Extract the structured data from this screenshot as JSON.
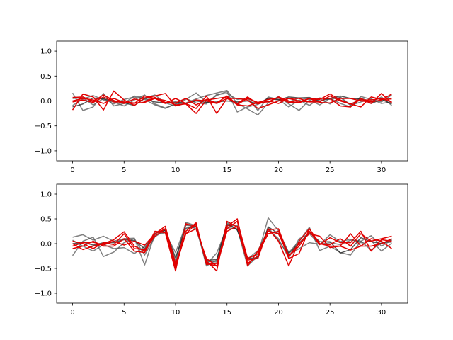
{
  "chart_data": [
    {
      "type": "line",
      "title": "",
      "xlabel": "",
      "ylabel": "",
      "xlim": [
        -1.55,
        32.55
      ],
      "ylim": [
        -1.2,
        1.2
      ],
      "xticks": [
        0,
        5,
        10,
        15,
        20,
        25,
        30
      ],
      "yticks": [
        -1.0,
        -0.5,
        0.0,
        0.5,
        1.0
      ],
      "ytick_labels": [
        "−1.0",
        "−0.5",
        "0.0",
        "0.5",
        "1.0"
      ],
      "grid": false,
      "series": [
        {
          "color": "#555555",
          "values": [
            0.16,
            -0.19,
            -0.12,
            0.15,
            -0.1,
            -0.05,
            0.1,
            0.06,
            0.12,
            -0.04,
            -0.1,
            0.03,
            0.16,
            -0.03,
            0.11,
            0.19,
            -0.22,
            -0.12,
            -0.07,
            0.06,
            0.03,
            -0.02,
            0.06,
            0.03,
            0.05,
            -0.06,
            0.08,
            -0.08,
            0.06,
            -0.02,
            0.08,
            -0.09
          ]
        },
        {
          "color": "#555555",
          "values": [
            -0.09,
            0.04,
            0.11,
            0.02,
            -0.02,
            -0.1,
            0.02,
            0.12,
            -0.06,
            -0.14,
            -0.06,
            -0.04,
            0.04,
            0.11,
            0.16,
            0.21,
            -0.05,
            -0.16,
            -0.28,
            -0.04,
            0.09,
            -0.06,
            -0.19,
            0.02,
            -0.08,
            0.05,
            -0.05,
            -0.12,
            0.09,
            0.03,
            -0.02,
            0.12
          ]
        },
        {
          "color": "#555555",
          "values": [
            0.05,
            0.06,
            -0.08,
            0.05,
            -0.06,
            0.03,
            0.08,
            0.03,
            -0.08,
            -0.15,
            -0.06,
            0.05,
            -0.04,
            -0.06,
            0.13,
            0.15,
            0.03,
            0.06,
            -0.19,
            0.08,
            0.03,
            -0.12,
            0.02,
            -0.09,
            0.06,
            0.03,
            0.07,
            -0.09,
            -0.02,
            0.04,
            -0.05,
            -0.02
          ]
        },
        {
          "color": "#222222",
          "values": [
            -0.12,
            -0.06,
            0.06,
            0.04,
            0.0,
            -0.04,
            -0.09,
            0.05,
            -0.02,
            -0.04,
            -0.02,
            -0.05,
            0.0,
            -0.03,
            -0.02,
            0.0,
            -0.02,
            0.0,
            -0.06,
            0.05,
            0.02,
            0.08,
            0.06,
            0.07,
            0.0,
            0.05,
            0.1,
            0.05,
            0.04,
            -0.05,
            0.03,
            -0.06
          ]
        },
        {
          "color": "#e00000",
          "values": [
            -0.18,
            0.14,
            0.08,
            -0.18,
            0.2,
            0.02,
            -0.09,
            0.06,
            0.1,
            0.15,
            -0.1,
            -0.05,
            0.02,
            0.0,
            -0.05,
            0.05,
            -0.05,
            0.08,
            -0.06,
            0.0,
            -0.05,
            0.05,
            0.05,
            -0.02,
            0.05,
            0.05,
            -0.1,
            -0.12,
            0.05,
            -0.05,
            0.15,
            -0.04
          ]
        },
        {
          "color": "#e00000",
          "values": [
            0.07,
            0.08,
            -0.01,
            0.12,
            0.01,
            -0.05,
            0.04,
            -0.01,
            0.07,
            -0.03,
            -0.04,
            0.05,
            -0.08,
            0.03,
            -0.04,
            0.1,
            -0.07,
            0.05,
            -0.03,
            -0.02,
            0.08,
            0.0,
            -0.04,
            0.05,
            -0.03,
            -0.04,
            0.05,
            0.05,
            0.0,
            -0.02,
            0.02,
            0.14
          ]
        },
        {
          "color": "#e00000",
          "values": [
            0.0,
            0.05,
            0.02,
            -0.05,
            0.05,
            -0.03,
            -0.05,
            0.1,
            0.05,
            -0.05,
            0.05,
            -0.05,
            -0.15,
            0.1,
            -0.25,
            0.05,
            0.05,
            0.02,
            -0.15,
            -0.08,
            0.0,
            0.05,
            0.0,
            -0.02,
            -0.02,
            0.1,
            0.0,
            -0.06,
            0.02,
            0.02,
            0.05,
            -0.02
          ]
        },
        {
          "color": "#e00000",
          "values": [
            -0.02,
            0.02,
            -0.03,
            0.08,
            -0.02,
            -0.02,
            -0.04,
            -0.03,
            0.05,
            0.01,
            -0.08,
            -0.06,
            -0.25,
            0.02,
            0.05,
            0.08,
            -0.08,
            -0.1,
            -0.03,
            0.03,
            0.06,
            -0.03,
            -0.02,
            0.05,
            0.03,
            0.14,
            0.02,
            -0.06,
            -0.12,
            0.08,
            0.03,
            0.04
          ]
        }
      ]
    },
    {
      "type": "line",
      "title": "",
      "xlabel": "",
      "ylabel": "",
      "xlim": [
        -1.55,
        32.55
      ],
      "ylim": [
        -1.2,
        1.2
      ],
      "xticks": [
        0,
        5,
        10,
        15,
        20,
        25,
        30
      ],
      "yticks": [
        -1.0,
        -0.5,
        0.0,
        0.5,
        1.0
      ],
      "ytick_labels": [
        "−1.0",
        "−0.5",
        "0.0",
        "0.5",
        "1.0"
      ],
      "grid": false,
      "series": [
        {
          "color": "#555555",
          "values": [
            0.13,
            0.18,
            0.07,
            0.15,
            0.05,
            0.1,
            0.11,
            -0.43,
            0.2,
            0.27,
            -0.39,
            0.41,
            0.29,
            -0.36,
            -0.37,
            0.43,
            0.27,
            -0.29,
            -0.22,
            0.52,
            0.26,
            -0.18,
            0.05,
            0.33,
            -0.14,
            -0.05,
            -0.18,
            -0.23,
            0.05,
            0.16,
            -0.05,
            0.07
          ]
        },
        {
          "color": "#555555",
          "values": [
            -0.24,
            0.05,
            0.13,
            -0.26,
            -0.17,
            0.02,
            0.1,
            -0.23,
            0.14,
            0.27,
            -0.34,
            0.43,
            0.36,
            -0.42,
            -0.19,
            0.32,
            0.3,
            -0.45,
            -0.25,
            0.33,
            0.06,
            -0.23,
            -0.1,
            0.02,
            -0.01,
            0.02,
            -0.02,
            0.07,
            0.05,
            -0.13,
            0.02,
            0.03
          ]
        },
        {
          "color": "#555555",
          "values": [
            0.07,
            -0.05,
            -0.15,
            -0.02,
            -0.1,
            -0.08,
            -0.2,
            -0.06,
            0.18,
            0.22,
            -0.18,
            0.37,
            0.35,
            -0.45,
            -0.33,
            0.36,
            0.37,
            -0.31,
            -0.14,
            0.28,
            0.1,
            -0.29,
            0.1,
            0.2,
            -0.02,
            0.18,
            0.04,
            0.09,
            0.02,
            0.06,
            -0.15,
            0.01
          ]
        },
        {
          "color": "#222222",
          "values": [
            0.0,
            0.03,
            -0.03,
            0.02,
            0.02,
            0.08,
            0.06,
            -0.1,
            0.21,
            0.27,
            -0.28,
            0.31,
            0.34,
            -0.34,
            -0.32,
            0.4,
            0.28,
            -0.3,
            -0.28,
            0.34,
            0.2,
            -0.2,
            0.01,
            0.23,
            0.04,
            0.04,
            -0.19,
            -0.12,
            0.12,
            0.04,
            0.0,
            0.08
          ]
        },
        {
          "color": "#e00000",
          "values": [
            0.0,
            -0.12,
            -0.05,
            0.0,
            0.08,
            0.24,
            -0.05,
            -0.15,
            0.25,
            0.22,
            -0.55,
            0.4,
            0.35,
            -0.35,
            -0.55,
            0.45,
            0.33,
            -0.33,
            -0.3,
            0.3,
            0.05,
            -0.45,
            0.05,
            0.3,
            0.0,
            -0.05,
            -0.05,
            -0.13,
            -0.05,
            -0.05,
            0.0,
            0.1
          ]
        },
        {
          "color": "#e00000",
          "values": [
            -0.05,
            0.02,
            0.03,
            -0.03,
            0.05,
            -0.03,
            0.05,
            -0.03,
            0.2,
            0.35,
            -0.4,
            0.2,
            0.4,
            -0.4,
            -0.45,
            0.35,
            0.5,
            -0.45,
            -0.15,
            0.25,
            0.2,
            -0.25,
            0.0,
            0.2,
            0.15,
            -0.08,
            -0.05,
            0.2,
            -0.05,
            0.1,
            0.05,
            -0.1
          ]
        },
        {
          "color": "#e00000",
          "values": [
            0.05,
            0.0,
            -0.1,
            0.02,
            -0.02,
            0.2,
            -0.1,
            -0.12,
            0.15,
            0.3,
            -0.5,
            0.25,
            0.42,
            -0.42,
            -0.4,
            0.3,
            0.45,
            -0.3,
            -0.2,
            0.2,
            0.25,
            -0.3,
            -0.2,
            0.3,
            0.0,
            -0.02,
            0.1,
            -0.05,
            0.2,
            0.05,
            0.1,
            0.15
          ]
        },
        {
          "color": "#e00000",
          "values": [
            -0.1,
            -0.05,
            0.05,
            -0.05,
            -0.05,
            0.1,
            -0.15,
            -0.18,
            0.2,
            0.3,
            -0.45,
            0.2,
            0.3,
            -0.3,
            -0.45,
            0.25,
            0.35,
            -0.4,
            -0.25,
            0.28,
            0.3,
            -0.25,
            -0.05,
            0.25,
            -0.02,
            0.12,
            0.02,
            0.02,
            0.25,
            -0.15,
            0.08,
            0.05
          ]
        }
      ]
    }
  ]
}
